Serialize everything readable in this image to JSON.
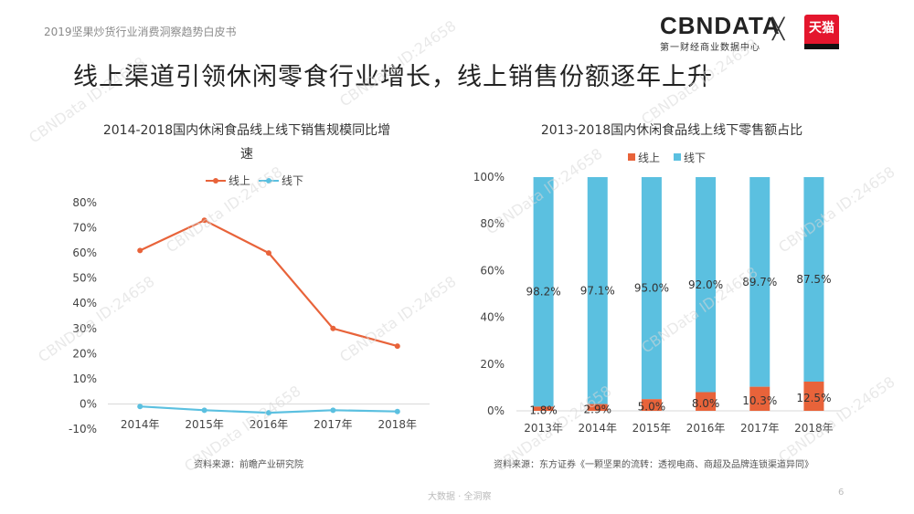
{
  "header": {
    "subtitle": "2019坚果炒货行业消费洞察趋势白皮书",
    "logo_main": "CBNDATA",
    "logo_sub": "第一财经商业数据中心",
    "logo_x": "╳",
    "tmall_text": "天猫"
  },
  "page_title": "线上渠道引领休闲零食行业增长，线上销售份额逐年上升",
  "watermark_text": "CBNData ID:24658",
  "footer": {
    "center": "大数据 · 全洞察",
    "page_number": "6"
  },
  "colors": {
    "online": "#e8633a",
    "offline": "#5bc0e0",
    "grid": "#d9d9d9"
  },
  "chart_data": [
    {
      "type": "line",
      "title": "2014-2018国内休闲食品线上线下销售规模同比增速",
      "title_line1": "2014-2018国内休闲食品线上线下销售规模同比增",
      "title_line2": "速",
      "categories": [
        "2014年",
        "2015年",
        "2016年",
        "2017年",
        "2018年"
      ],
      "series": [
        {
          "name": "线上",
          "values": [
            61,
            73,
            60,
            30,
            23
          ]
        },
        {
          "name": "线下",
          "values": [
            -1,
            -2.5,
            -3.5,
            -2.5,
            -3
          ]
        }
      ],
      "ylim": [
        -10,
        80
      ],
      "yticks": [
        -10,
        0,
        10,
        20,
        30,
        40,
        50,
        60,
        70,
        80
      ],
      "ytick_labels": [
        "-10%",
        "0%",
        "10%",
        "20%",
        "30%",
        "40%",
        "50%",
        "60%",
        "70%",
        "80%"
      ],
      "legend": "top",
      "source": "资料来源：前瞻产业研究院"
    },
    {
      "type": "bar",
      "stacked": true,
      "title": "2013-2018国内休闲食品线上线下零售额占比",
      "categories": [
        "2013年",
        "2014年",
        "2015年",
        "2016年",
        "2017年",
        "2018年"
      ],
      "series": [
        {
          "name": "线上",
          "values": [
            1.8,
            2.9,
            5.0,
            8.0,
            10.3,
            12.5
          ],
          "labels": [
            "1.8%",
            "2.9%",
            "5.0%",
            "8.0%",
            "10.3%",
            "12.5%"
          ]
        },
        {
          "name": "线下",
          "values": [
            98.2,
            97.1,
            95.0,
            92.0,
            89.7,
            87.5
          ],
          "labels": [
            "98.2%",
            "97.1%",
            "95.0%",
            "92.0%",
            "89.7%",
            "87.5%"
          ]
        }
      ],
      "ylim": [
        0,
        100
      ],
      "yticks": [
        0,
        20,
        40,
        60,
        80,
        100
      ],
      "ytick_labels": [
        "0%",
        "20%",
        "40%",
        "60%",
        "80%",
        "100%"
      ],
      "legend": "top",
      "source": "资料来源：东方证券《一颗坚果的流转：透视电商、商超及品牌连锁渠道异同》"
    }
  ]
}
